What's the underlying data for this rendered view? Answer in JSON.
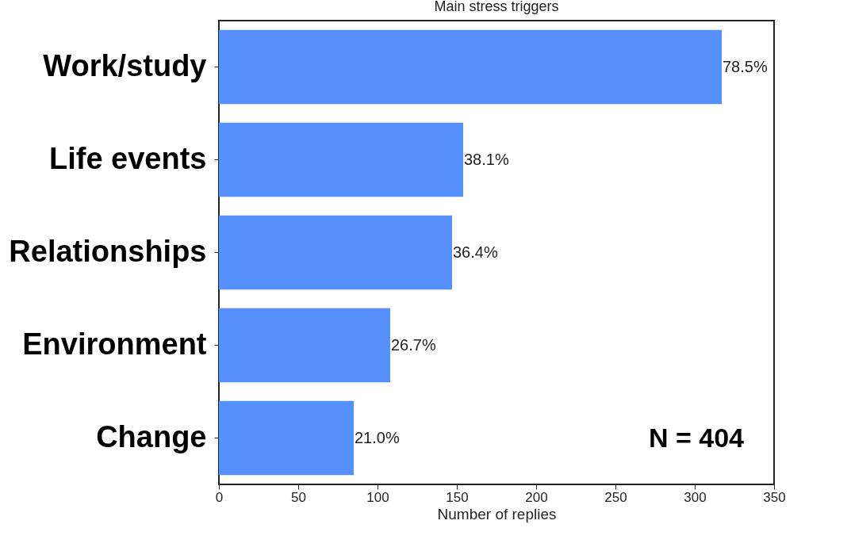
{
  "chart_data": {
    "type": "bar",
    "orientation": "horizontal",
    "title": "Main stress triggers",
    "xlabel": "Number of replies",
    "categories": [
      "Work/study",
      "Life events",
      "Relationships",
      "Environment",
      "Change"
    ],
    "values": [
      317,
      154,
      147,
      108,
      85
    ],
    "color": "#5590fc",
    "xlim": [
      0,
      350
    ],
    "xticks": [
      0,
      50,
      100,
      150,
      200,
      250,
      300,
      350
    ],
    "grid": false,
    "annotations": [
      "N = 404",
      {
        "text": "78.5%",
        "x": 317,
        "y": "Work/study"
      },
      {
        "text": "38.1%",
        "x": 154,
        "y": "Life events"
      },
      {
        "text": "36.4%",
        "x": 147,
        "y": "Relationships"
      },
      {
        "text": "26.7%",
        "x": 108,
        "y": "Environment"
      },
      {
        "text": "21.0%",
        "x": 85,
        "y": "Change"
      }
    ]
  }
}
